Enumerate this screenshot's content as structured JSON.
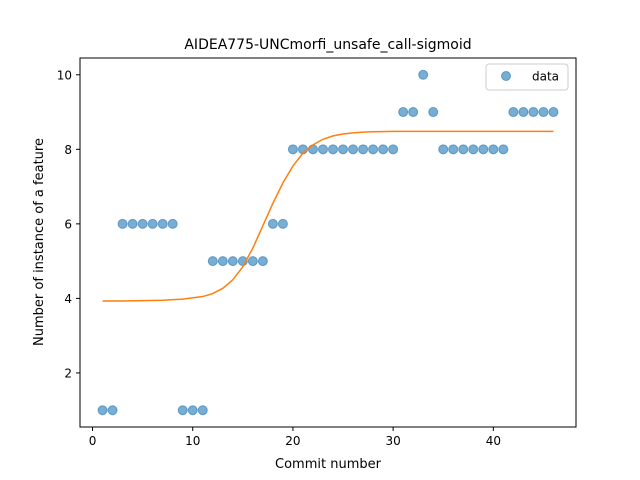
{
  "chart_data": {
    "type": "scatter",
    "title": "AIDEA775-UNCmorfi_unsafe_call-sigmoid",
    "xlabel": "Commit number",
    "ylabel": "Number of instance of a feature",
    "xlim": [
      -1.25,
      48.25
    ],
    "ylim": [
      0.55,
      10.45
    ],
    "xticks": [
      0,
      10,
      20,
      30,
      40
    ],
    "yticks": [
      2,
      4,
      6,
      8,
      10
    ],
    "legend": {
      "position": "top-right",
      "entries": [
        "data"
      ]
    },
    "series": [
      {
        "name": "data",
        "kind": "scatter",
        "color": "#1f77b4",
        "x": [
          1,
          2,
          3,
          4,
          5,
          6,
          7,
          8,
          9,
          10,
          11,
          12,
          13,
          14,
          15,
          16,
          17,
          18,
          19,
          20,
          21,
          22,
          23,
          24,
          25,
          26,
          27,
          28,
          29,
          30,
          31,
          32,
          33,
          34,
          35,
          36,
          37,
          38,
          39,
          40,
          41,
          42,
          43,
          44,
          45,
          46
        ],
        "y": [
          1,
          1,
          6,
          6,
          6,
          6,
          6,
          6,
          1,
          1,
          1,
          5,
          5,
          5,
          5,
          5,
          5,
          6,
          6,
          8,
          8,
          8,
          8,
          8,
          8,
          8,
          8,
          8,
          8,
          8,
          9,
          9,
          10,
          9,
          8,
          8,
          8,
          8,
          8,
          8,
          8,
          9,
          9,
          9,
          9,
          9
        ]
      },
      {
        "kind": "line",
        "color": "#ff7f0e",
        "x": [
          1,
          3,
          5,
          7,
          9,
          11,
          12,
          13,
          14,
          15,
          16,
          17,
          18,
          19,
          20,
          21,
          22,
          23,
          24,
          25,
          26,
          27,
          28,
          30,
          32,
          35,
          38,
          42,
          46
        ],
        "y": [
          3.93,
          3.93,
          3.94,
          3.95,
          3.98,
          4.05,
          4.13,
          4.27,
          4.5,
          4.85,
          5.35,
          5.95,
          6.55,
          7.1,
          7.55,
          7.9,
          8.12,
          8.27,
          8.36,
          8.41,
          8.44,
          8.46,
          8.47,
          8.48,
          8.48,
          8.48,
          8.48,
          8.48,
          8.48
        ]
      }
    ]
  }
}
